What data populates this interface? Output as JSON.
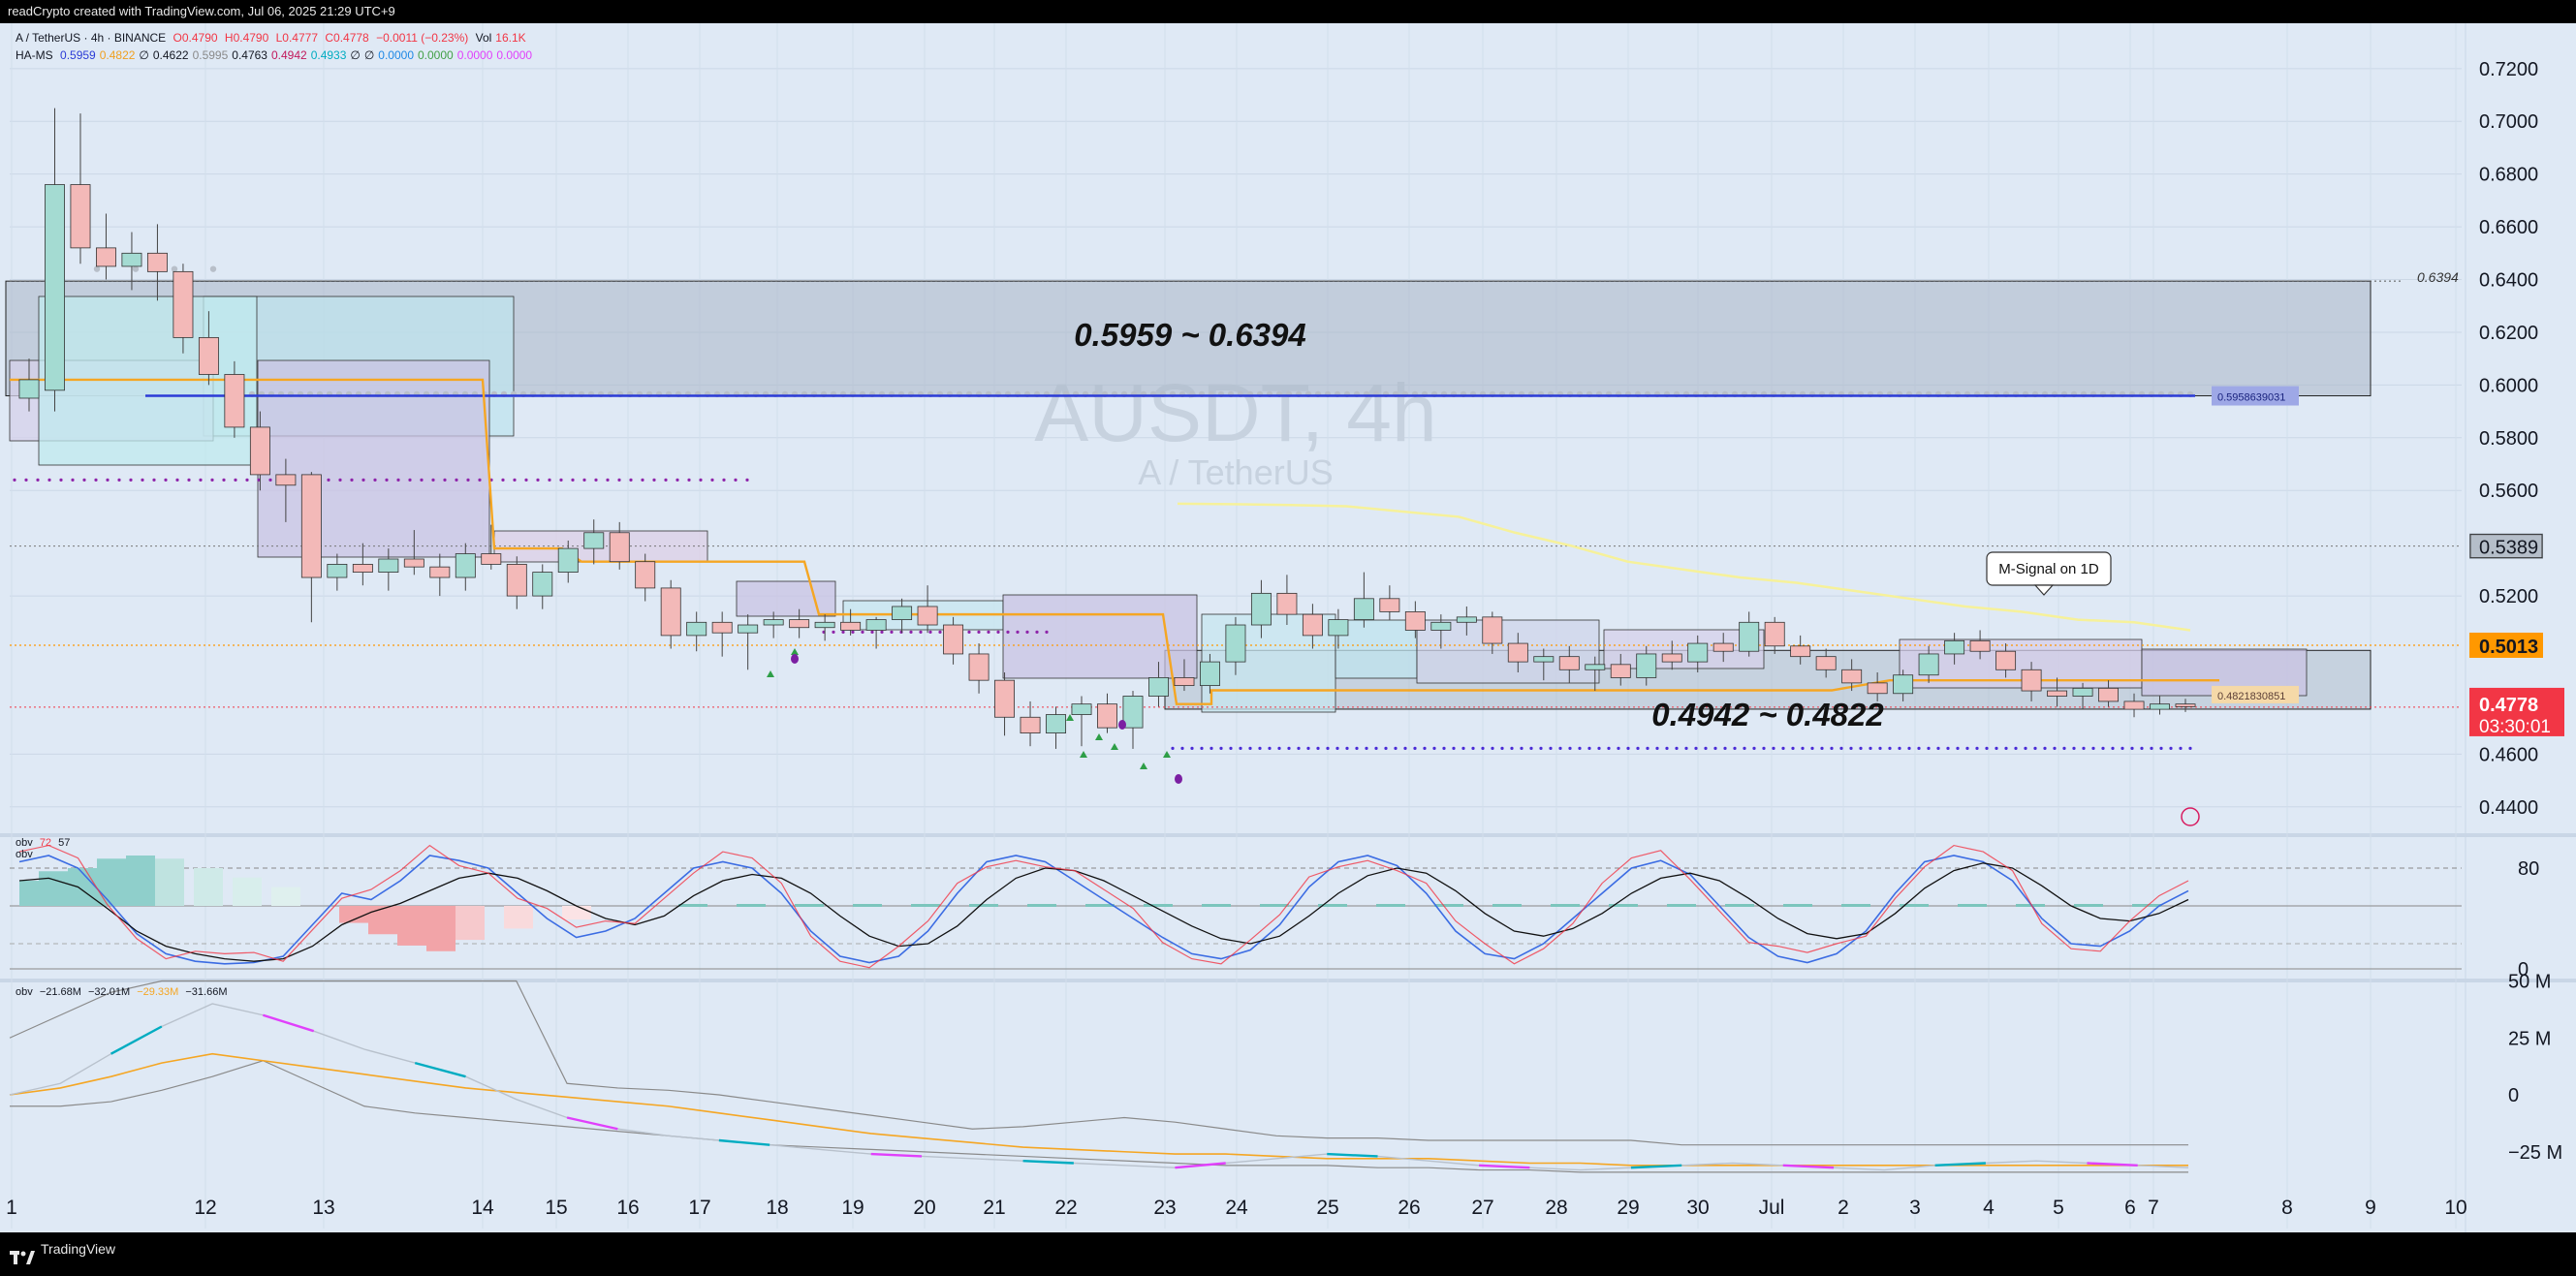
{
  "header": {
    "caption": "readCrypto created with TradingView.com, Jul 06, 2025 21:29 UTC+9"
  },
  "footer": {
    "brand": "TradingView"
  },
  "legend_main": {
    "symbol": "A / TetherUS · 4h · BINANCE",
    "o": "O0.4790",
    "h": "H0.4790",
    "l": "L0.4777",
    "c": "C0.4778",
    "chg": "−0.0011 (−0.23%)",
    "vol_label": "Vol",
    "vol": "16.1K"
  },
  "legend_hams": {
    "name": "HA-MS",
    "values": [
      "0.5959",
      "0.4822",
      "∅",
      "0.4622",
      "0.5995",
      "0.4763",
      "0.4942",
      "0.4933",
      "∅",
      "∅",
      "0.0000",
      "0.0000",
      "0.0000",
      "0.0000"
    ],
    "colors": [
      "#2b3bd6",
      "#f0a020",
      "#131722",
      "#131722",
      "#8a8a8a",
      "#131722",
      "#c2185b",
      "#00acc1",
      "#131722",
      "#131722",
      "#1e88e5",
      "#43a047",
      "#e040fb",
      "#e040fb"
    ]
  },
  "legend_obv1": {
    "name": "obv",
    "v1": "72",
    "v2": "57",
    "name2": "obv"
  },
  "legend_obv2": {
    "name": "obv",
    "v1": "−21.68M",
    "v2": "−32.01M",
    "v3": "−29.33M",
    "v4": "−31.66M"
  },
  "watermark": {
    "title": "AUSDT, 4h",
    "subtitle": "A / TetherUS"
  },
  "annotations": {
    "upper_zone": "0.5959 ~ 0.6394",
    "lower_zone": "0.4942 ~ 0.4822",
    "callout": "M-Signal on 1D",
    "level_6394": "0.6394",
    "level_5959": "0.5958639031",
    "level_4821": "0.4821830851"
  },
  "price_badges": {
    "b5389": "0.5389",
    "b5013": "0.5013",
    "last": "0.4778",
    "countdown": "03:30:01"
  },
  "colors": {
    "bull": "#26a69a",
    "bear": "#ef5350",
    "bg": "#dfe9f5",
    "grid": "#cbd7e6",
    "orange": "#f5a623",
    "blue_line": "#2b3bd6",
    "last": "#f23645",
    "badge_orange": "#ff9800"
  },
  "chart_data": {
    "type": "candlestick",
    "symbol": "AUSDT",
    "timeframe": "4h",
    "y_ticks": [
      "0.7200",
      "0.7000",
      "0.6800",
      "0.6600",
      "0.6400",
      "0.6200",
      "0.6000",
      "0.5800",
      "0.5600",
      "0.5389",
      "0.5200",
      "0.5013",
      "0.4778",
      "0.4600",
      "0.4400"
    ],
    "y_tick_values": [
      0.72,
      0.7,
      0.68,
      0.66,
      0.64,
      0.62,
      0.6,
      0.58,
      0.56,
      0.5389,
      0.52,
      0.5013,
      0.4778,
      0.46,
      0.44
    ],
    "ylim": [
      0.43,
      0.735
    ],
    "x_ticks": [
      "1",
      "12",
      "13",
      "14",
      "15",
      "16",
      "17",
      "18",
      "19",
      "20",
      "21",
      "22",
      "23",
      "24",
      "25",
      "26",
      "27",
      "28",
      "29",
      "30",
      "Jul",
      "2",
      "3",
      "4",
      "5",
      "6",
      "7",
      "8",
      "9",
      "10"
    ],
    "osc1_ticks": [
      "80",
      "0"
    ],
    "osc2_ticks": [
      "50 M",
      "25 M",
      "0",
      "−25 M"
    ],
    "levels": {
      "upper_zone": [
        0.5959,
        0.6394
      ],
      "lower_zone": [
        0.4822,
        0.4942
      ],
      "m_signal_start": 0.555,
      "dotted_5389": 0.5389,
      "dotted_5013": 0.5013,
      "last_price": 0.4778,
      "blue_support": 0.4622,
      "purple_upper": 0.564
    },
    "candles": [
      {
        "o": 0.595,
        "h": 0.61,
        "l": 0.59,
        "c": 0.602
      },
      {
        "o": 0.598,
        "h": 0.705,
        "l": 0.59,
        "c": 0.676
      },
      {
        "o": 0.676,
        "h": 0.703,
        "l": 0.646,
        "c": 0.652
      },
      {
        "o": 0.652,
        "h": 0.665,
        "l": 0.64,
        "c": 0.645
      },
      {
        "o": 0.645,
        "h": 0.658,
        "l": 0.636,
        "c": 0.65
      },
      {
        "o": 0.65,
        "h": 0.661,
        "l": 0.632,
        "c": 0.643
      },
      {
        "o": 0.643,
        "h": 0.646,
        "l": 0.612,
        "c": 0.618
      },
      {
        "o": 0.618,
        "h": 0.628,
        "l": 0.6,
        "c": 0.604
      },
      {
        "o": 0.604,
        "h": 0.609,
        "l": 0.58,
        "c": 0.584
      },
      {
        "o": 0.584,
        "h": 0.59,
        "l": 0.56,
        "c": 0.566
      },
      {
        "o": 0.566,
        "h": 0.572,
        "l": 0.548,
        "c": 0.562
      },
      {
        "o": 0.566,
        "h": 0.567,
        "l": 0.51,
        "c": 0.527
      },
      {
        "o": 0.527,
        "h": 0.536,
        "l": 0.522,
        "c": 0.532
      },
      {
        "o": 0.532,
        "h": 0.54,
        "l": 0.524,
        "c": 0.529
      },
      {
        "o": 0.529,
        "h": 0.538,
        "l": 0.522,
        "c": 0.534
      },
      {
        "o": 0.534,
        "h": 0.545,
        "l": 0.528,
        "c": 0.531
      },
      {
        "o": 0.531,
        "h": 0.536,
        "l": 0.52,
        "c": 0.527
      },
      {
        "o": 0.527,
        "h": 0.54,
        "l": 0.522,
        "c": 0.536
      },
      {
        "o": 0.536,
        "h": 0.547,
        "l": 0.53,
        "c": 0.532
      },
      {
        "o": 0.532,
        "h": 0.535,
        "l": 0.515,
        "c": 0.52
      },
      {
        "o": 0.52,
        "h": 0.532,
        "l": 0.515,
        "c": 0.529
      },
      {
        "o": 0.529,
        "h": 0.541,
        "l": 0.525,
        "c": 0.538
      },
      {
        "o": 0.538,
        "h": 0.549,
        "l": 0.532,
        "c": 0.544
      },
      {
        "o": 0.544,
        "h": 0.548,
        "l": 0.53,
        "c": 0.533
      },
      {
        "o": 0.533,
        "h": 0.536,
        "l": 0.518,
        "c": 0.523
      },
      {
        "o": 0.523,
        "h": 0.526,
        "l": 0.5,
        "c": 0.505
      },
      {
        "o": 0.505,
        "h": 0.514,
        "l": 0.499,
        "c": 0.51
      },
      {
        "o": 0.51,
        "h": 0.514,
        "l": 0.497,
        "c": 0.506
      },
      {
        "o": 0.506,
        "h": 0.513,
        "l": 0.492,
        "c": 0.509
      },
      {
        "o": 0.509,
        "h": 0.514,
        "l": 0.504,
        "c": 0.511
      },
      {
        "o": 0.511,
        "h": 0.515,
        "l": 0.504,
        "c": 0.508
      },
      {
        "o": 0.508,
        "h": 0.513,
        "l": 0.503,
        "c": 0.51
      },
      {
        "o": 0.51,
        "h": 0.515,
        "l": 0.505,
        "c": 0.507
      },
      {
        "o": 0.507,
        "h": 0.512,
        "l": 0.5,
        "c": 0.511
      },
      {
        "o": 0.511,
        "h": 0.519,
        "l": 0.506,
        "c": 0.516
      },
      {
        "o": 0.516,
        "h": 0.524,
        "l": 0.506,
        "c": 0.509
      },
      {
        "o": 0.509,
        "h": 0.512,
        "l": 0.494,
        "c": 0.498
      },
      {
        "o": 0.498,
        "h": 0.502,
        "l": 0.483,
        "c": 0.488
      },
      {
        "o": 0.488,
        "h": 0.491,
        "l": 0.467,
        "c": 0.474
      },
      {
        "o": 0.474,
        "h": 0.48,
        "l": 0.463,
        "c": 0.468
      },
      {
        "o": 0.468,
        "h": 0.478,
        "l": 0.462,
        "c": 0.475
      },
      {
        "o": 0.475,
        "h": 0.482,
        "l": 0.463,
        "c": 0.479
      },
      {
        "o": 0.479,
        "h": 0.483,
        "l": 0.468,
        "c": 0.47
      },
      {
        "o": 0.47,
        "h": 0.484,
        "l": 0.462,
        "c": 0.482
      },
      {
        "o": 0.482,
        "h": 0.495,
        "l": 0.478,
        "c": 0.489
      },
      {
        "o": 0.489,
        "h": 0.496,
        "l": 0.484,
        "c": 0.486
      },
      {
        "o": 0.486,
        "h": 0.498,
        "l": 0.483,
        "c": 0.495
      },
      {
        "o": 0.495,
        "h": 0.512,
        "l": 0.49,
        "c": 0.509
      },
      {
        "o": 0.509,
        "h": 0.526,
        "l": 0.504,
        "c": 0.521
      },
      {
        "o": 0.521,
        "h": 0.528,
        "l": 0.509,
        "c": 0.513
      },
      {
        "o": 0.513,
        "h": 0.517,
        "l": 0.5,
        "c": 0.505
      },
      {
        "o": 0.505,
        "h": 0.515,
        "l": 0.5,
        "c": 0.511
      },
      {
        "o": 0.511,
        "h": 0.529,
        "l": 0.508,
        "c": 0.519
      },
      {
        "o": 0.519,
        "h": 0.524,
        "l": 0.511,
        "c": 0.514
      },
      {
        "o": 0.514,
        "h": 0.518,
        "l": 0.504,
        "c": 0.507
      },
      {
        "o": 0.507,
        "h": 0.513,
        "l": 0.5,
        "c": 0.51
      },
      {
        "o": 0.51,
        "h": 0.516,
        "l": 0.505,
        "c": 0.512
      },
      {
        "o": 0.512,
        "h": 0.514,
        "l": 0.498,
        "c": 0.502
      },
      {
        "o": 0.502,
        "h": 0.506,
        "l": 0.491,
        "c": 0.495
      },
      {
        "o": 0.495,
        "h": 0.5,
        "l": 0.488,
        "c": 0.497
      },
      {
        "o": 0.497,
        "h": 0.501,
        "l": 0.487,
        "c": 0.492
      },
      {
        "o": 0.492,
        "h": 0.497,
        "l": 0.484,
        "c": 0.494
      },
      {
        "o": 0.494,
        "h": 0.498,
        "l": 0.486,
        "c": 0.489
      },
      {
        "o": 0.489,
        "h": 0.501,
        "l": 0.486,
        "c": 0.498
      },
      {
        "o": 0.498,
        "h": 0.503,
        "l": 0.492,
        "c": 0.495
      },
      {
        "o": 0.495,
        "h": 0.505,
        "l": 0.491,
        "c": 0.502
      },
      {
        "o": 0.502,
        "h": 0.506,
        "l": 0.495,
        "c": 0.499
      },
      {
        "o": 0.499,
        "h": 0.514,
        "l": 0.497,
        "c": 0.51
      },
      {
        "o": 0.51,
        "h": 0.512,
        "l": 0.498,
        "c": 0.501
      },
      {
        "o": 0.501,
        "h": 0.505,
        "l": 0.494,
        "c": 0.497
      },
      {
        "o": 0.497,
        "h": 0.5,
        "l": 0.489,
        "c": 0.492
      },
      {
        "o": 0.492,
        "h": 0.496,
        "l": 0.484,
        "c": 0.487
      },
      {
        "o": 0.487,
        "h": 0.491,
        "l": 0.48,
        "c": 0.483
      },
      {
        "o": 0.483,
        "h": 0.492,
        "l": 0.48,
        "c": 0.49
      },
      {
        "o": 0.49,
        "h": 0.501,
        "l": 0.487,
        "c": 0.498
      },
      {
        "o": 0.498,
        "h": 0.506,
        "l": 0.494,
        "c": 0.503
      },
      {
        "o": 0.503,
        "h": 0.507,
        "l": 0.496,
        "c": 0.499
      },
      {
        "o": 0.499,
        "h": 0.502,
        "l": 0.489,
        "c": 0.492
      },
      {
        "o": 0.492,
        "h": 0.495,
        "l": 0.48,
        "c": 0.484
      },
      {
        "o": 0.484,
        "h": 0.489,
        "l": 0.478,
        "c": 0.482
      },
      {
        "o": 0.482,
        "h": 0.487,
        "l": 0.477,
        "c": 0.485
      },
      {
        "o": 0.485,
        "h": 0.488,
        "l": 0.478,
        "c": 0.48
      },
      {
        "o": 0.48,
        "h": 0.483,
        "l": 0.474,
        "c": 0.477
      },
      {
        "o": 0.477,
        "h": 0.482,
        "l": 0.475,
        "c": 0.479
      },
      {
        "o": 0.479,
        "h": 0.481,
        "l": 0.476,
        "c": 0.478
      }
    ],
    "m_signal_1d": [
      0.555,
      0.5548,
      0.5545,
      0.554,
      0.552,
      0.55,
      0.544,
      0.539,
      0.533,
      0.53,
      0.527,
      0.525,
      0.522,
      0.519,
      0.516,
      0.514,
      0.511,
      0.51,
      0.507
    ],
    "obv1_series": [
      {
        "name": "fast",
        "values": [
          85,
          90,
          80,
          55,
          28,
          12,
          6,
          4,
          5,
          10,
          35,
          60,
          55,
          70,
          90,
          86,
          80,
          60,
          40,
          25,
          30,
          40,
          60,
          80,
          85,
          80,
          60,
          30,
          10,
          5,
          10,
          30,
          60,
          85,
          90,
          85,
          70,
          55,
          40,
          25,
          12,
          8,
          15,
          35,
          65,
          85,
          90,
          82,
          60,
          30,
          12,
          8,
          20,
          40,
          60,
          80,
          86,
          75,
          50,
          25,
          10,
          5,
          12,
          30,
          60,
          85,
          90,
          85,
          70,
          40,
          20,
          18,
          30,
          50,
          62
        ]
      },
      {
        "name": "slow",
        "values": [
          70,
          72,
          65,
          48,
          30,
          18,
          12,
          8,
          6,
          8,
          18,
          35,
          45,
          52,
          62,
          72,
          76,
          72,
          62,
          50,
          40,
          35,
          42,
          58,
          70,
          75,
          72,
          60,
          42,
          26,
          18,
          20,
          34,
          55,
          72,
          80,
          78,
          70,
          58,
          46,
          34,
          24,
          20,
          26,
          42,
          60,
          74,
          80,
          76,
          62,
          44,
          30,
          26,
          32,
          44,
          60,
          72,
          76,
          70,
          56,
          40,
          28,
          24,
          28,
          44,
          64,
          78,
          84,
          80,
          66,
          50,
          40,
          38,
          44,
          55
        ]
      }
    ],
    "obv2_series": [
      {
        "name": "obv",
        "values": [
          0,
          5,
          18,
          30,
          40,
          35,
          28,
          20,
          14,
          8,
          -2,
          -10,
          -15,
          -18,
          -20,
          -22,
          -24,
          -26,
          -27,
          -28,
          -29,
          -30,
          -31,
          -32,
          -30,
          -28,
          -26,
          -27,
          -29,
          -31,
          -32,
          -33,
          -32,
          -31,
          -30,
          -31,
          -32,
          -33,
          -31,
          -30,
          -29,
          -30,
          -31,
          -32
        ]
      },
      {
        "name": "ma",
        "values": [
          0,
          3,
          8,
          14,
          18,
          15,
          12,
          9,
          6,
          3,
          1,
          -1,
          -3,
          -5,
          -8,
          -11,
          -14,
          -17,
          -19,
          -21,
          -23,
          -24,
          -25,
          -26,
          -26,
          -27,
          -28,
          -28,
          -28,
          -29,
          -30,
          -30,
          -31,
          -31,
          -31,
          -31,
          -31,
          -31,
          -31,
          -31,
          -31,
          -31,
          -31,
          -31
        ]
      },
      {
        "name": "upper_env",
        "values": [
          25,
          35,
          45,
          50,
          50,
          50,
          50,
          50,
          50,
          50,
          50,
          5,
          3,
          2,
          0,
          -3,
          -6,
          -9,
          -12,
          -15,
          -14,
          -12,
          -10,
          -12,
          -15,
          -18,
          -19,
          -19,
          -20,
          -20,
          -20,
          -20,
          -20,
          -22,
          -22,
          -22,
          -22,
          -22,
          -22,
          -22,
          -22,
          -22,
          -22,
          -22
        ]
      },
      {
        "name": "lower_env",
        "values": [
          -5,
          -5,
          -3,
          2,
          8,
          15,
          5,
          -5,
          -8,
          -10,
          -12,
          -14,
          -16,
          -18,
          -20,
          -22,
          -23,
          -24,
          -25,
          -26,
          -27,
          -28,
          -29,
          -30,
          -31,
          -31,
          -31,
          -32,
          -32,
          -33,
          -33,
          -34,
          -34,
          -34,
          -34,
          -34,
          -34,
          -34,
          -34,
          -34,
          -34,
          -34,
          -34,
          -34
        ]
      }
    ]
  }
}
